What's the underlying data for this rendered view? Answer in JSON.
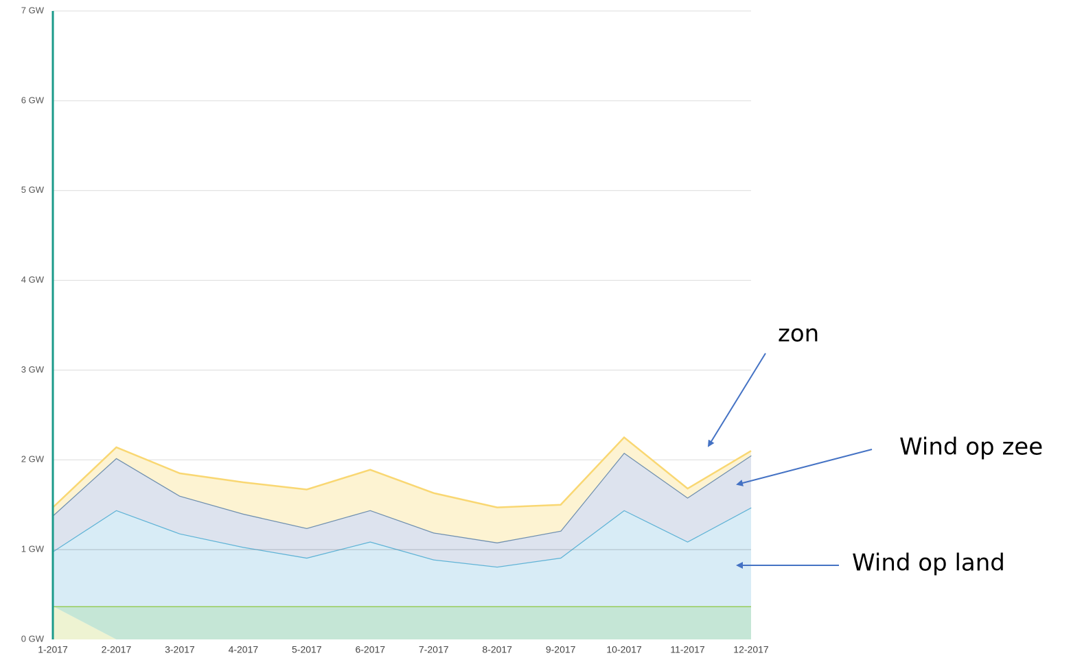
{
  "chart_data": {
    "type": "stacked_area",
    "categories": [
      "1-2017",
      "2-2017",
      "3-2017",
      "4-2017",
      "5-2017",
      "6-2017",
      "7-2017",
      "8-2017",
      "9-2017",
      "10-2017",
      "11-2017",
      "12-2017"
    ],
    "series": [
      {
        "color": "#eef3d2",
        "values": [
          0.37,
          0,
          0,
          0,
          0,
          0,
          0,
          0,
          0,
          0,
          0,
          0
        ]
      },
      {
        "color": "#c5e6d6",
        "line_color": "#8cc63f",
        "values": [
          0,
          0.37,
          0.37,
          0.37,
          0.37,
          0.37,
          0.37,
          0.37,
          0.37,
          0.37,
          0.37,
          0.37
        ]
      },
      {
        "name": "Wind op land",
        "color": "#d8ecf6",
        "line_color": "#5fb3d6",
        "values": [
          0.61,
          1.07,
          0.81,
          0.66,
          0.54,
          0.72,
          0.52,
          0.44,
          0.54,
          1.07,
          0.72,
          1.1
        ]
      },
      {
        "name": "Wind op zee",
        "color": "#dde3ee",
        "line_color": "#6f8fae",
        "values": [
          0.4,
          0.58,
          0.42,
          0.37,
          0.33,
          0.35,
          0.3,
          0.27,
          0.3,
          0.64,
          0.49,
          0.58
        ]
      },
      {
        "name": "zon",
        "color": "#fdf3d2",
        "line_color": "#f9d772",
        "values": [
          0.09,
          0.12,
          0.25,
          0.35,
          0.43,
          0.45,
          0.44,
          0.39,
          0.29,
          0.17,
          0.1,
          0.05
        ]
      }
    ],
    "ylim": [
      0,
      7
    ],
    "yticks": [
      {
        "value": 0,
        "label": "0 GW"
      },
      {
        "value": 1,
        "label": "1 GW"
      },
      {
        "value": 2,
        "label": "2 GW"
      },
      {
        "value": 3,
        "label": "3 GW"
      },
      {
        "value": 4,
        "label": "4 GW"
      },
      {
        "value": 5,
        "label": "5 GW"
      },
      {
        "value": 6,
        "label": "6 GW"
      },
      {
        "value": 7,
        "label": "7 GW"
      }
    ],
    "grid": true
  }
}
